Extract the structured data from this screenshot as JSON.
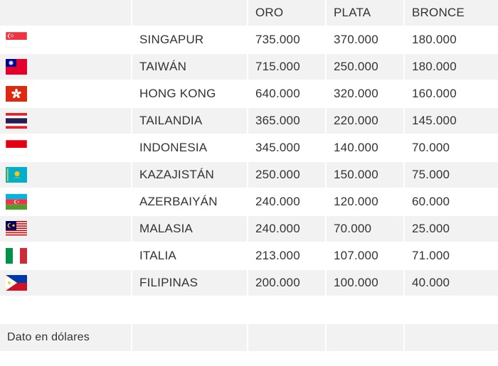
{
  "headers": [
    "",
    "",
    "ORO",
    "PLATA",
    "BRONCE"
  ],
  "rows": [
    {
      "flag": "singapore-flag",
      "country": "SINGAPUR",
      "oro": "735.000",
      "plata": "370.000",
      "bronce": "180.000"
    },
    {
      "flag": "taiwan-flag",
      "country": "TAIWÁN",
      "oro": "715.000",
      "plata": "250.000",
      "bronce": "180.000"
    },
    {
      "flag": "hong-kong-flag",
      "country": "HONG KONG",
      "oro": "640.000",
      "plata": "320.000",
      "bronce": "160.000"
    },
    {
      "flag": "thailand-flag",
      "country": "TAILANDIA",
      "oro": "365.000",
      "plata": "220.000",
      "bronce": "145.000"
    },
    {
      "flag": "indonesia-flag",
      "country": "INDONESIA",
      "oro": "345.000",
      "plata": "140.000",
      "bronce": "70.000"
    },
    {
      "flag": "kazakhstan-flag",
      "country": "KAZAJISTÁN",
      "oro": "250.000",
      "plata": "150.000",
      "bronce": "75.000"
    },
    {
      "flag": "azerbaijan-flag",
      "country": "AZERBAIYÁN",
      "oro": "240.000",
      "plata": "120.000",
      "bronce": "60.000"
    },
    {
      "flag": "malaysia-flag",
      "country": "MALASIA",
      "oro": "240.000",
      "plata": "70.000",
      "bronce": "25.000"
    },
    {
      "flag": "italy-flag",
      "country": "ITALIA",
      "oro": "213.000",
      "plata": "107.000",
      "bronce": "71.000"
    },
    {
      "flag": "philippines-flag",
      "country": "FILIPINAS",
      "oro": "200.000",
      "plata": "100.000",
      "bronce": "40.000"
    }
  ],
  "footer": {
    "note": "Dato en dólares"
  }
}
